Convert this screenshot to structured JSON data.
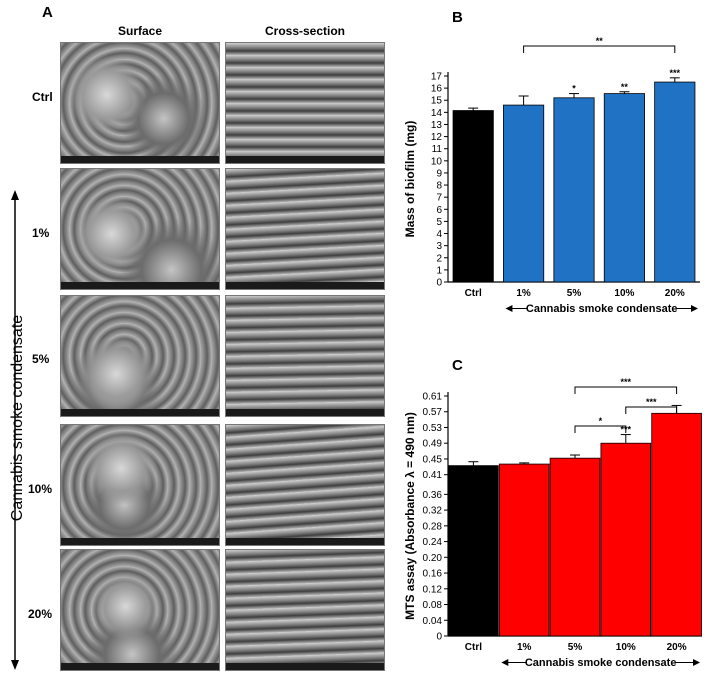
{
  "panel_a": {
    "letter": "A",
    "col_surface": "Surface",
    "col_cross": "Cross-section",
    "rows": [
      "Ctrl",
      "1%",
      "5%",
      "10%",
      "20%"
    ],
    "side_label": "Cannabis smoke condensate"
  },
  "chart_data": [
    {
      "type": "bar",
      "letter": "B",
      "categories": [
        "Ctrl",
        "1%",
        "5%",
        "10%",
        "20%"
      ],
      "values": [
        14.15,
        14.6,
        15.2,
        15.55,
        16.5
      ],
      "errors": [
        0.2,
        0.75,
        0.35,
        0.15,
        0.35
      ],
      "colors": [
        "#000000",
        "#1f72c4",
        "#1f72c4",
        "#1f72c4",
        "#1f72c4"
      ],
      "ylabel": "Mass of biofilm (mg)",
      "xlabel": "Cannabis smoke condensate",
      "ylim": [
        0,
        17
      ],
      "yticks": [
        "0",
        "1",
        "2",
        "3",
        "4",
        "5",
        "6",
        "7",
        "8",
        "9",
        "10",
        "11",
        "12",
        "13",
        "14",
        "15",
        "16",
        "17"
      ],
      "bar_labels": [
        "",
        "",
        "*",
        "**",
        "***"
      ],
      "brackets": [
        {
          "from": 1,
          "to": 4,
          "label": "**"
        }
      ]
    },
    {
      "type": "bar",
      "letter": "C",
      "categories": [
        "Ctrl",
        "1%",
        "5%",
        "10%",
        "20%"
      ],
      "values": [
        0.433,
        0.437,
        0.452,
        0.49,
        0.566
      ],
      "errors": [
        0.01,
        0.003,
        0.008,
        0.022,
        0.02
      ],
      "colors": [
        "#000000",
        "#ff0000",
        "#ff0000",
        "#ff0000",
        "#ff0000"
      ],
      "ylabel": "MTS assay (Absorbance λ = 490 nm)",
      "xlabel": "Cannabis smoke condensate",
      "ylim": [
        0,
        0.61
      ],
      "yticks": [
        "0",
        "0.04",
        "0.08",
        "0.12",
        "0.16",
        "0.20",
        "0.24",
        "0.28",
        "0.32",
        "0.36",
        "0.41",
        "0.45",
        "0.49",
        "0.53",
        "0.57",
        "0.61"
      ],
      "bar_labels": [
        "",
        "",
        "",
        "***",
        ""
      ],
      "brackets": [
        {
          "from": 2,
          "to": 3,
          "label": "*"
        },
        {
          "from": 3,
          "to": 4,
          "label": "***"
        },
        {
          "from": 2,
          "to": 4,
          "label": "***"
        }
      ]
    }
  ]
}
